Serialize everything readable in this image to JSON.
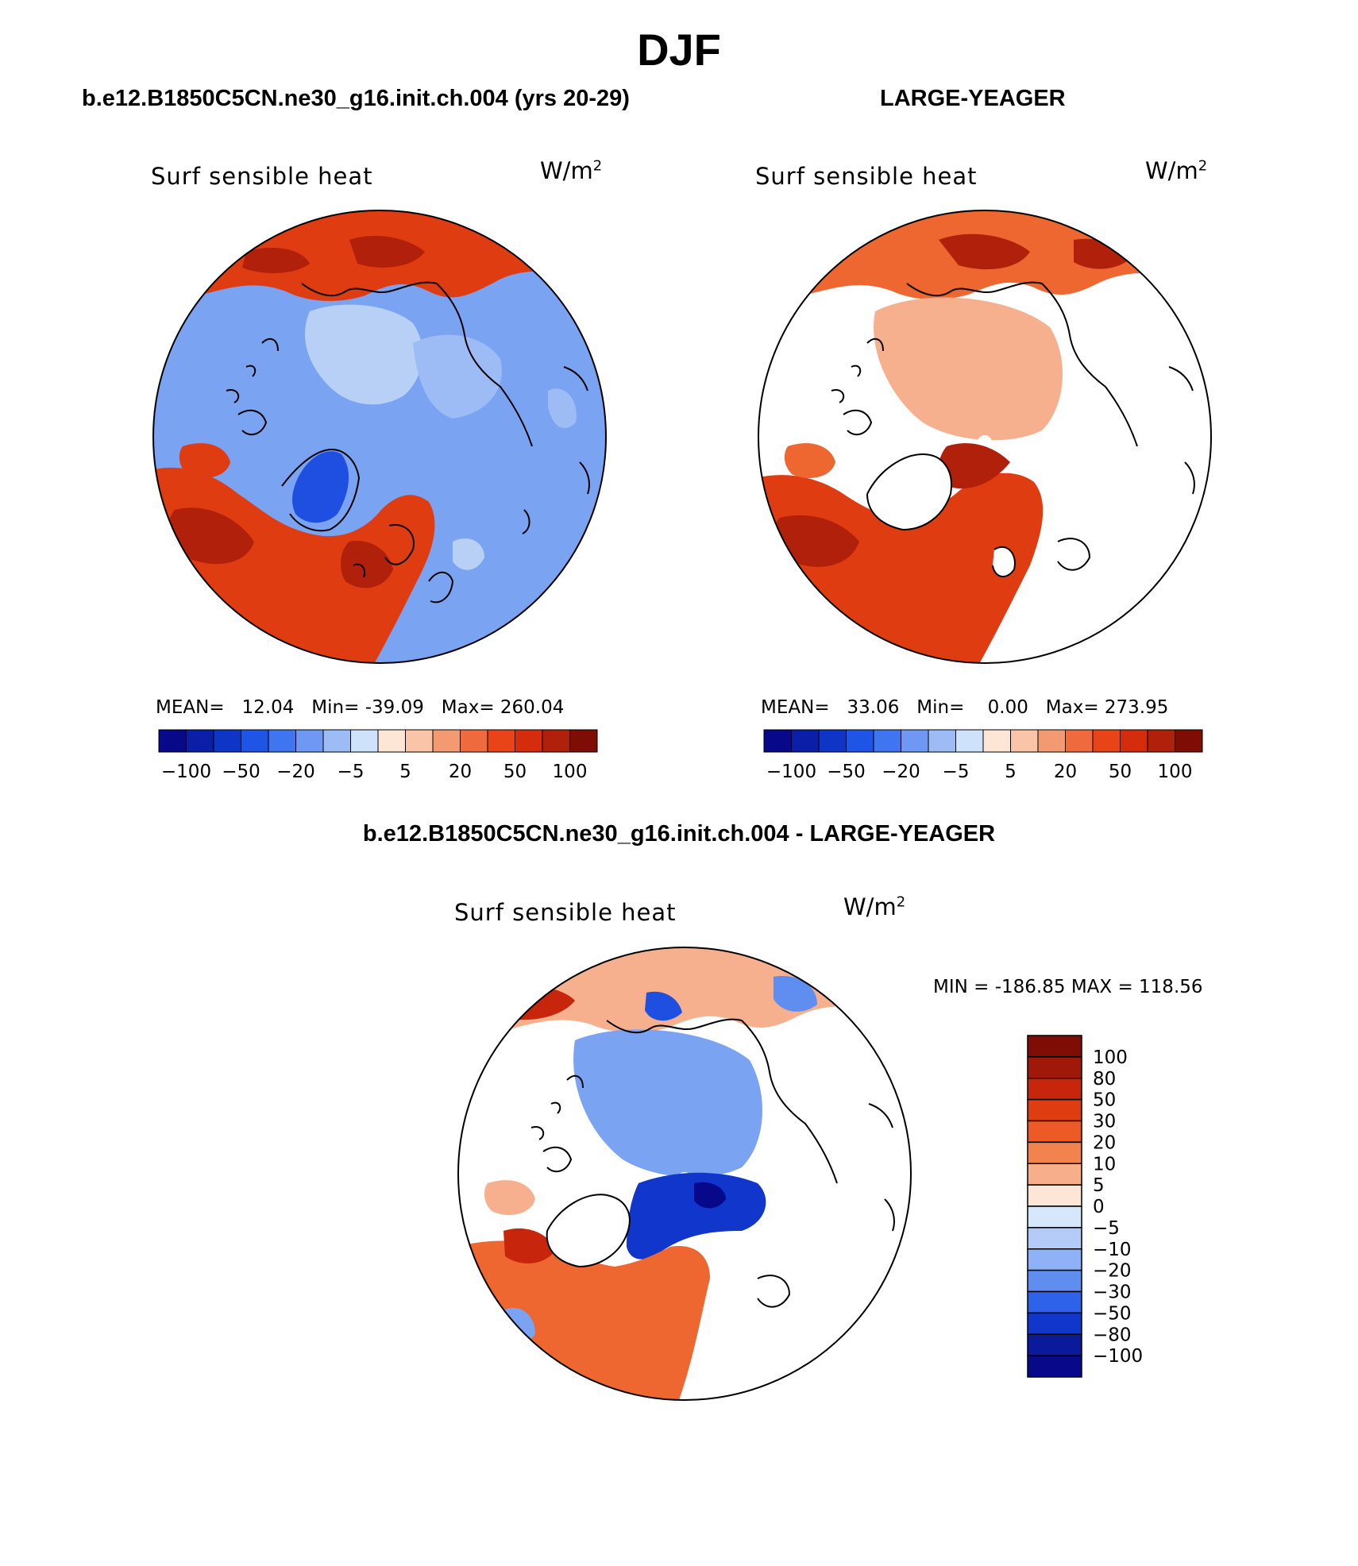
{
  "title": "DJF",
  "panels": [
    {
      "case_title": "b.e12.B1850C5CN.ne30_g16.init.ch.004 (yrs 20-29)",
      "plot_label": "Surf sensible heat",
      "units": "W/m",
      "units_sup": "2",
      "stats_text": "MEAN=   12.04   Min= -39.09   Max= 260.04",
      "colorbar_ticks": [
        "-100",
        "-50",
        "-20",
        "-5",
        "5",
        "20",
        "50",
        "100"
      ]
    },
    {
      "case_title": "LARGE-YEAGER",
      "plot_label": "Surf sensible heat",
      "units": "W/m",
      "units_sup": "2",
      "stats_text": "MEAN=   33.06   Min=    0.00   Max= 273.95",
      "colorbar_ticks": [
        "-100",
        "-50",
        "-20",
        "-5",
        "5",
        "20",
        "50",
        "100"
      ]
    },
    {
      "case_title": "b.e12.B1850C5CN.ne30_g16.init.ch.004 - LARGE-YEAGER",
      "plot_label": "Surf sensible heat",
      "units": "W/m",
      "units_sup": "2",
      "stats_text": "MIN = -186.85 MAX = 118.56",
      "colorbar_ticks": [
        "100",
        "80",
        "50",
        "30",
        "20",
        "10",
        "5",
        "0",
        "-5",
        "-10",
        "-20",
        "-30",
        "-50",
        "-80",
        "-100"
      ]
    }
  ],
  "colors": {
    "horizontal_scale": [
      "#08088a",
      "#0a1ea8",
      "#0f35c7",
      "#1e55e6",
      "#3f75f0",
      "#6f98f5",
      "#9dbcf5",
      "#cfe2fb",
      "#fde6d6",
      "#f9c4a8",
      "#f49a73",
      "#ef6a3c",
      "#e84418",
      "#d42c0c",
      "#b0200a",
      "#7e0d05"
    ],
    "vertical_scale": [
      "#7e0d05",
      "#a0180a",
      "#c8260c",
      "#e03c12",
      "#ee5a25",
      "#f2834e",
      "#f7ae8a",
      "#fde6d6",
      "#d6e6fb",
      "#b3cbf6",
      "#8fb1f5",
      "#5f8ef0",
      "#2f62ea",
      "#1036cc",
      "#0a1a9a",
      "#08088a"
    ],
    "deep_blue": "#1f4fe0",
    "mid_blue": "#7aa3f2",
    "light_blue": "#b9d0f6",
    "deep_red": "#b0200a",
    "red": "#e03c12",
    "orange": "#ee6630",
    "peach": "#f7b08e",
    "land_outline": "#000000"
  }
}
